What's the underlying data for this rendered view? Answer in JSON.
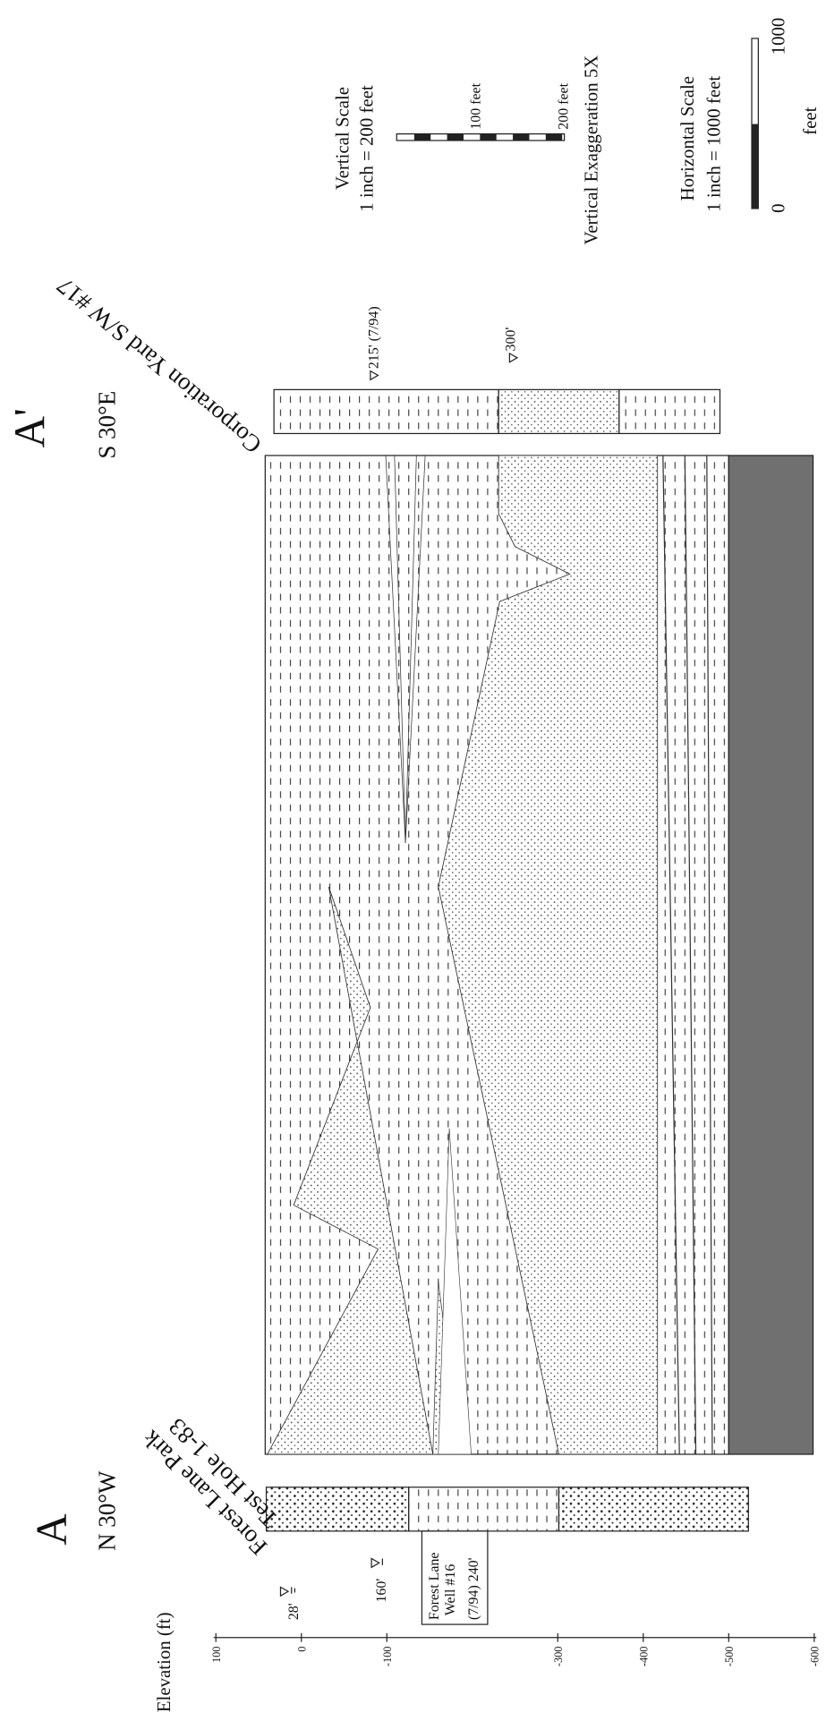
{
  "axis": {
    "title": "Elevation (ft)",
    "ticks": [
      "100",
      "0",
      "-100",
      "-300",
      "-400",
      "-500",
      "-600"
    ]
  },
  "section_start": {
    "label": "A",
    "bearing": "N 30°W"
  },
  "section_end": {
    "label": "A'",
    "bearing": "S 30°E"
  },
  "wells": [
    {
      "name": "Forest Lane Park",
      "id": "Test Hole 1-83",
      "water_levels": [
        "28'",
        "160'"
      ]
    },
    {
      "name": "Corporation Yard S/W #17",
      "water_levels": [
        "215' (7/94)",
        "300'"
      ]
    }
  ],
  "note_box": {
    "lines": [
      "Forest Lane",
      "Well #16",
      "(7/94) 240'"
    ]
  },
  "vertical_scale": {
    "title": "Vertical Scale",
    "ratio": "1 inch = 200 feet",
    "labels": [
      "100 feet",
      "200 feet"
    ],
    "exaggeration": "Vertical Exaggeration 5X"
  },
  "horizontal_scale": {
    "title": "Horizontal Scale",
    "ratio": "1 inch = 1000 feet",
    "labels": [
      "0",
      "1000"
    ],
    "unit": "feet"
  }
}
